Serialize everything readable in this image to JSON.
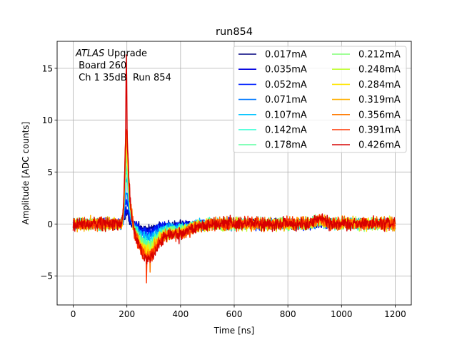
{
  "chart_data": {
    "type": "line",
    "title": "run854",
    "xlabel": "Time [ns]",
    "ylabel": "Amplitude [ADC counts]",
    "xlim": [
      -60,
      1260
    ],
    "ylim": [
      -7.8,
      17.6
    ],
    "xticks": [
      0,
      200,
      400,
      600,
      800,
      1000,
      1200
    ],
    "yticks": [
      -5,
      0,
      5,
      10,
      15
    ],
    "grid": true,
    "legend_position": "top-right",
    "legend_columns": 2,
    "annotation": {
      "line1_italic": "ATLAS",
      "line1_rest": " Upgrade",
      "line2": " Board 260",
      "line3": " Ch 1 35dB  Run 854"
    },
    "time_range_ns": [
      0,
      1200
    ],
    "series": [
      {
        "name": "0.017mA",
        "color": "#00007f",
        "peak": 0.8,
        "undershoot": -0.4
      },
      {
        "name": "0.035mA",
        "color": "#0000e1",
        "peak": 1.3,
        "undershoot": -0.6
      },
      {
        "name": "0.052mA",
        "color": "#0020ff",
        "peak": 1.9,
        "undershoot": -0.8
      },
      {
        "name": "0.071mA",
        "color": "#0078ff",
        "peak": 2.5,
        "undershoot": -1.0
      },
      {
        "name": "0.107mA",
        "color": "#00c4ff",
        "peak": 3.5,
        "undershoot": -1.3
      },
      {
        "name": "0.142mA",
        "color": "#26ffd0",
        "peak": 4.2,
        "undershoot": -1.6
      },
      {
        "name": "0.178mA",
        "color": "#5affa0",
        "peak": 4.8,
        "undershoot": -1.8
      },
      {
        "name": "0.212mA",
        "color": "#80ff77",
        "peak": 5.2,
        "undershoot": -2.0
      },
      {
        "name": "0.248mA",
        "color": "#c1ff36",
        "peak": 5.6,
        "undershoot": -2.2
      },
      {
        "name": "0.284mA",
        "color": "#ffe500",
        "peak": 6.0,
        "undershoot": -2.4
      },
      {
        "name": "0.319mA",
        "color": "#ffb000",
        "peak": 6.4,
        "undershoot": -2.6
      },
      {
        "name": "0.356mA",
        "color": "#ff7a00",
        "peak": 6.8,
        "undershoot": -2.8
      },
      {
        "name": "0.391mA",
        "color": "#ff3500",
        "peak": 7.2,
        "undershoot": -3.0
      },
      {
        "name": "0.426mA",
        "color": "#d60000",
        "peak": 16.5,
        "undershoot": -3.2
      }
    ]
  }
}
